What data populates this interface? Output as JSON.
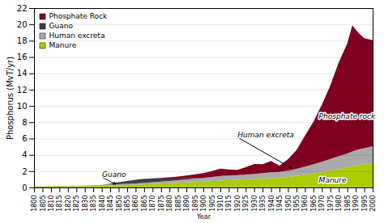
{
  "chart_data": {
    "type": "area",
    "stacked": true,
    "xlabel": "Year",
    "ylabel": "Phosphorus (MvT/yr)",
    "x": [
      1800,
      1805,
      1810,
      1815,
      1820,
      1825,
      1830,
      1835,
      1840,
      1845,
      1850,
      1855,
      1860,
      1865,
      1870,
      1875,
      1880,
      1885,
      1890,
      1895,
      1900,
      1905,
      1910,
      1915,
      1920,
      1925,
      1930,
      1935,
      1940,
      1945,
      1950,
      1955,
      1960,
      1965,
      1970,
      1975,
      1980,
      1985,
      1988,
      1990,
      1992,
      1995,
      2000
    ],
    "series": [
      {
        "name": "Manure",
        "color": "#aacc00",
        "values": [
          0.1,
          0.11,
          0.12,
          0.13,
          0.14,
          0.16,
          0.17,
          0.19,
          0.21,
          0.24,
          0.27,
          0.3,
          0.33,
          0.37,
          0.42,
          0.47,
          0.52,
          0.57,
          0.62,
          0.67,
          0.72,
          0.78,
          0.85,
          0.9,
          0.95,
          1.0,
          1.05,
          1.1,
          1.15,
          1.2,
          1.28,
          1.4,
          1.55,
          1.7,
          1.85,
          2.05,
          2.25,
          2.45,
          2.6,
          2.7,
          2.78,
          2.85,
          3.0
        ]
      },
      {
        "name": "Human excreta",
        "color": "#aaaaaa",
        "values": [
          0.04,
          0.05,
          0.05,
          0.06,
          0.06,
          0.07,
          0.08,
          0.09,
          0.1,
          0.12,
          0.13,
          0.15,
          0.17,
          0.19,
          0.22,
          0.25,
          0.28,
          0.31,
          0.35,
          0.39,
          0.43,
          0.48,
          0.53,
          0.55,
          0.55,
          0.58,
          0.62,
          0.65,
          0.7,
          0.72,
          0.78,
          0.88,
          1.0,
          1.15,
          1.3,
          1.45,
          1.6,
          1.72,
          1.8,
          1.85,
          1.9,
          1.95,
          2.05
        ]
      },
      {
        "name": "Guano",
        "color": "#404040",
        "values": [
          0.0,
          0.0,
          0.0,
          0.0,
          0.0,
          0.0,
          0.0,
          0.0,
          0.02,
          0.1,
          0.25,
          0.35,
          0.45,
          0.5,
          0.45,
          0.38,
          0.3,
          0.22,
          0.14,
          0.09,
          0.05,
          0.03,
          0.02,
          0.01,
          0.0,
          0.0,
          0.0,
          0.0,
          0.0,
          0.0,
          0.0,
          0.0,
          0.0,
          0.0,
          0.0,
          0.0,
          0.0,
          0.0,
          0.0,
          0.0,
          0.0,
          0.0,
          0.0
        ]
      },
      {
        "name": "Phosphate Rock",
        "color": "#800020",
        "values": [
          0.0,
          0.0,
          0.0,
          0.0,
          0.0,
          0.0,
          0.0,
          0.0,
          0.0,
          0.0,
          0.0,
          0.0,
          0.0,
          0.01,
          0.03,
          0.07,
          0.15,
          0.25,
          0.35,
          0.45,
          0.55,
          0.72,
          0.9,
          0.75,
          0.65,
          0.9,
          1.2,
          1.1,
          1.4,
          0.75,
          1.4,
          2.3,
          3.8,
          5.2,
          7.0,
          9.0,
          11.5,
          13.5,
          15.5,
          14.8,
          14.2,
          13.5,
          13.0
        ]
      }
    ],
    "xlim": [
      1800,
      2000
    ],
    "xticks": [
      1800,
      1805,
      1810,
      1815,
      1820,
      1825,
      1830,
      1835,
      1840,
      1845,
      1850,
      1855,
      1860,
      1865,
      1870,
      1875,
      1880,
      1885,
      1890,
      1895,
      1900,
      1905,
      1910,
      1915,
      1920,
      1925,
      1930,
      1935,
      1940,
      1945,
      1950,
      1955,
      1960,
      1965,
      1970,
      1975,
      1980,
      1985,
      1990,
      1995,
      2000
    ],
    "ylim": [
      0,
      22
    ],
    "yticks": [
      0,
      2,
      4,
      6,
      8,
      10,
      12,
      14,
      16,
      18,
      20,
      22
    ],
    "grid": true,
    "legend": "upper left",
    "annotations": [
      {
        "text": "Guano",
        "x": 1840,
        "y": 1.3,
        "arrow_x": 1848,
        "arrow_y": 0.45
      },
      {
        "text": "Human excreta",
        "x": 1920,
        "y": 6.2,
        "arrow_x": 1952,
        "arrow_y": 2.4
      },
      {
        "text": "Phosphate rock",
        "x": 1968,
        "y": 8.5
      },
      {
        "text": "Manure",
        "x": 1968,
        "y": 0.6
      }
    ]
  }
}
